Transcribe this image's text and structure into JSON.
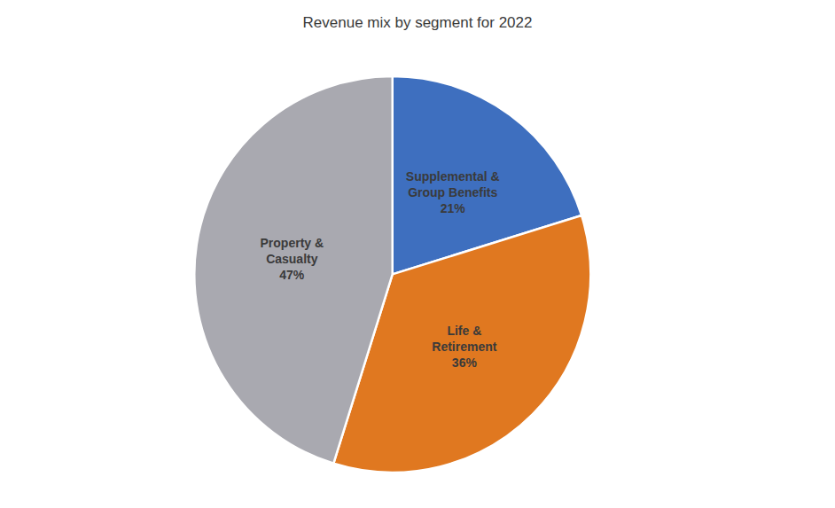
{
  "chart_data": {
    "type": "pie",
    "title": "Revenue mix by segment for 2022",
    "categories": [
      "Supplemental &\nGroup Benefits",
      "Life &\nRetirement",
      "Property &\nCasualty"
    ],
    "values": [
      21,
      36,
      47
    ],
    "value_labels": [
      "21%",
      "36%",
      "47%"
    ],
    "colors": [
      "#3E6FBF",
      "#E07820",
      "#A9A9B0"
    ],
    "data_labels": true
  }
}
